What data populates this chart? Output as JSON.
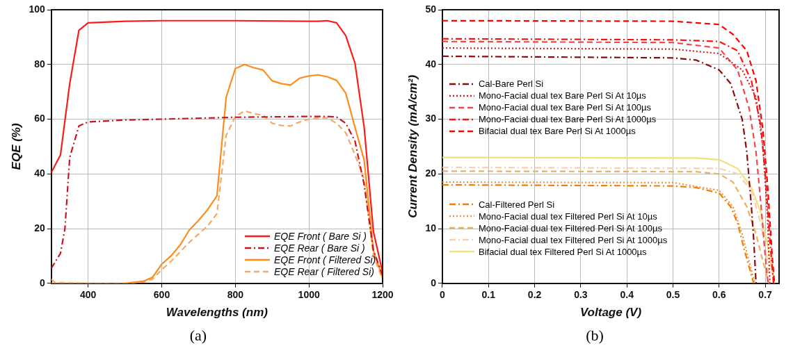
{
  "chart_data": [
    {
      "type": "line",
      "xlabel": "Wavelengths (nm)",
      "ylabel": "EQE (%)",
      "xlim": [
        300,
        1200
      ],
      "ylim": [
        0,
        100
      ],
      "xticks": [
        400,
        600,
        800,
        1000,
        1200
      ],
      "yticks": [
        0,
        20,
        40,
        60,
        80,
        100
      ],
      "grid": true,
      "legend": "bottom right",
      "marker": "none",
      "annotations": [
        "(a)"
      ],
      "series": [
        {
          "name": "EQE Front ( Bare Si )",
          "color": "#ff1a1a",
          "line_style": "solid",
          "x": [
            300,
            325,
            350,
            375,
            400,
            500,
            600,
            800,
            1000,
            1025,
            1050,
            1075,
            1100,
            1125,
            1150,
            1175,
            1200
          ],
          "values": [
            40.5,
            47,
            73,
            92.5,
            95.2,
            95.8,
            96,
            96,
            95.8,
            95.8,
            96,
            95.2,
            90.5,
            80.5,
            57,
            19,
            4
          ]
        },
        {
          "name": "EQE Rear ( Bare Si )",
          "color": "#c8141e",
          "line_style": "dashdot",
          "x": [
            300,
            325,
            337,
            350,
            375,
            400,
            500,
            600,
            800,
            1000,
            1050,
            1075,
            1100,
            1125,
            1150,
            1175,
            1200
          ],
          "values": [
            5.5,
            11,
            20,
            46,
            57.5,
            59,
            59.7,
            60,
            60.7,
            61,
            61,
            60.8,
            58.5,
            52,
            36,
            12,
            3
          ]
        },
        {
          "name": "EQE Front ( Filtered Si)",
          "color": "#ff8c1a",
          "line_style": "solid",
          "x": [
            300,
            400,
            500,
            550,
            575,
            600,
            625,
            650,
            675,
            700,
            725,
            750,
            775,
            800,
            825,
            850,
            875,
            900,
            925,
            950,
            975,
            1000,
            1025,
            1050,
            1075,
            1100,
            1125,
            1150,
            1175,
            1200
          ],
          "values": [
            0,
            0,
            0,
            0.8,
            2.2,
            7,
            10,
            14,
            19.5,
            23,
            27,
            32,
            68,
            78.5,
            80,
            78.8,
            78,
            74,
            73,
            72.5,
            75,
            75.8,
            76.2,
            75.5,
            74.2,
            69.5,
            57,
            45,
            12,
            2
          ]
        },
        {
          "name": "EQE Rear ( Filtered Si)",
          "color": "#f7a868",
          "line_style": "dashed",
          "x": [
            300,
            310,
            400,
            500,
            550,
            575,
            600,
            625,
            650,
            675,
            700,
            725,
            750,
            775,
            800,
            825,
            850,
            875,
            900,
            925,
            950,
            975,
            1000,
            1025,
            1050,
            1075,
            1100,
            1125,
            1150,
            1175,
            1200
          ],
          "values": [
            1.5,
            0.3,
            0,
            0,
            0.5,
            1.5,
            5,
            8,
            11.5,
            15,
            18,
            21,
            25.5,
            54,
            61,
            63,
            62,
            61.5,
            58.5,
            57.7,
            57.5,
            59,
            60,
            60.5,
            60.5,
            58.5,
            55,
            47,
            38,
            10,
            1.5
          ]
        }
      ]
    },
    {
      "type": "line",
      "xlabel": "Voltage (V)",
      "ylabel": "Current Density (mA/cm²)",
      "xlim": [
        0,
        0.73
      ],
      "ylim": [
        0,
        50
      ],
      "xticks": [
        0,
        0.1,
        0.2,
        0.3,
        0.4,
        0.5,
        0.6,
        0.7
      ],
      "yticks": [
        0,
        10,
        20,
        30,
        40,
        50
      ],
      "grid": true,
      "legend": "left",
      "marker": "none",
      "annotations": [
        "(b)"
      ],
      "series": [
        {
          "name": "Cal-Bare Perl Si",
          "color": "#8b0a0a",
          "line_style": "dashdot",
          "x": [
            0,
            0.5,
            0.55,
            0.6,
            0.625,
            0.65,
            0.66,
            0.67,
            0.675,
            0.68
          ],
          "values": [
            41.5,
            41.2,
            40.8,
            39,
            36.5,
            30,
            24,
            14,
            8,
            0
          ]
        },
        {
          "name": "Mono-Facial dual tex Bare Perl Si At 10µs",
          "color": "#d42020",
          "line_style": "dotted",
          "x": [
            0,
            0.5,
            0.6,
            0.65,
            0.68,
            0.695,
            0.705,
            0.71
          ],
          "values": [
            43,
            42.8,
            42,
            39,
            34,
            25,
            12,
            0
          ]
        },
        {
          "name": "Mono-Facial dual tex Bare Perl Si At 100µs",
          "color": "#f04848",
          "line_style": "dashed",
          "x": [
            0,
            0.5,
            0.6,
            0.64,
            0.665,
            0.68,
            0.69,
            0.7,
            0.706
          ],
          "values": [
            44.2,
            44,
            43,
            39,
            32,
            24,
            15,
            5,
            0
          ]
        },
        {
          "name": "Mono-Facial dual tex Bare Perl Si At 1000µs",
          "color": "#ff1010",
          "line_style": "dashdot",
          "x": [
            0,
            0.5,
            0.6,
            0.64,
            0.67,
            0.69,
            0.7,
            0.71,
            0.718
          ],
          "values": [
            44.7,
            44.5,
            44.2,
            42.5,
            37,
            29,
            20,
            8,
            0
          ]
        },
        {
          "name": "Bifacial dual tex Bare Perl Si At 1000µs",
          "color": "#ff0000",
          "line_style": "dashed",
          "x": [
            0,
            0.5,
            0.6,
            0.63,
            0.66,
            0.68,
            0.695,
            0.705,
            0.715,
            0.72
          ],
          "values": [
            48,
            47.9,
            47.3,
            45.5,
            42.5,
            37,
            28,
            18,
            5,
            0
          ]
        },
        {
          "name": "Cal-Filtered Perl Si",
          "color": "#f57c00",
          "line_style": "dashdot",
          "x": [
            0,
            0.5,
            0.55,
            0.6,
            0.625,
            0.64,
            0.655,
            0.665,
            0.675
          ],
          "values": [
            18,
            17.8,
            17.5,
            16.5,
            14,
            11,
            6,
            3,
            0
          ]
        },
        {
          "name": "Mono-Facial dual tex Filtered Perl Si At 10µs",
          "color": "#f59040",
          "line_style": "dotted",
          "x": [
            0,
            0.5,
            0.6,
            0.63,
            0.65,
            0.665,
            0.678
          ],
          "values": [
            18.5,
            18.4,
            17,
            14,
            9,
            4,
            0
          ]
        },
        {
          "name": "Mono-Facial dual tex Filtered Perl Si At 100µs",
          "color": "#e8b060",
          "line_style": "dashed",
          "x": [
            0,
            0.55,
            0.6,
            0.63,
            0.66,
            0.68,
            0.695,
            0.708
          ],
          "values": [
            20.5,
            20.4,
            20,
            18.5,
            14,
            9,
            4,
            0
          ]
        },
        {
          "name": "Mono-Facial dual tex Filtered Perl Si At 1000µs",
          "color": "#f8d0b0",
          "line_style": "dashdot",
          "x": [
            0,
            0.6,
            0.64,
            0.67,
            0.69,
            0.705,
            0.71
          ],
          "values": [
            21.2,
            21,
            20,
            17,
            11,
            4,
            0
          ]
        },
        {
          "name": "Bifacial dual tex Filtered Perl Si At 1000µs",
          "color": "#f0e080",
          "line_style": "solid",
          "x": [
            0,
            0.55,
            0.6,
            0.64,
            0.67,
            0.69,
            0.705,
            0.72
          ],
          "values": [
            23,
            22.9,
            22.6,
            21,
            17.5,
            13,
            7,
            0
          ]
        }
      ]
    }
  ]
}
